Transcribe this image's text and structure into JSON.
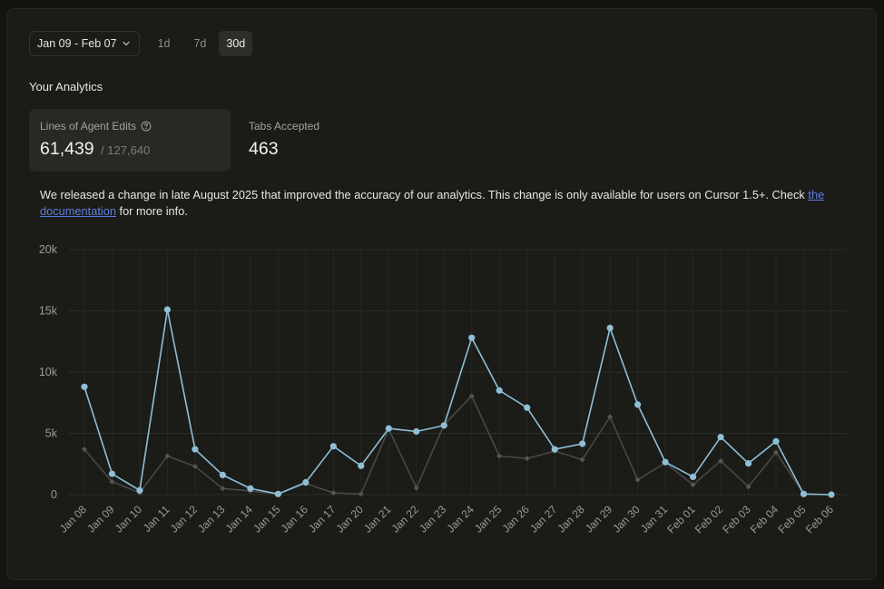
{
  "toolbar": {
    "date_range": "Jan 09 - Feb 07",
    "ranges": [
      "1d",
      "7d",
      "30d"
    ],
    "active_range": "30d"
  },
  "section_title": "Your Analytics",
  "cards": [
    {
      "label": "Lines of Agent Edits",
      "value": "61,439",
      "total": "/ 127,640",
      "icon": "help-circle-icon"
    },
    {
      "label": "Tabs Accepted",
      "value": "463"
    }
  ],
  "notice": {
    "text_before": "We released a change in late August 2025 that improved the accuracy of our analytics. This change is only available for users on Cursor 1.5+. Check ",
    "link_text": "the documentation",
    "text_after": " for more info."
  },
  "colors": {
    "accent": "#8fbfd6",
    "secondary": "#4a4a4a",
    "link": "#5b7fe0"
  },
  "chart_data": {
    "type": "line",
    "categories": [
      "Jan 08",
      "Jan 09",
      "Jan 10",
      "Jan 11",
      "Jan 12",
      "Jan 13",
      "Jan 14",
      "Jan 15",
      "Jan 16",
      "Jan 17",
      "Jan 20",
      "Jan 21",
      "Jan 22",
      "Jan 23",
      "Jan 24",
      "Jan 25",
      "Jan 26",
      "Jan 27",
      "Jan 28",
      "Jan 29",
      "Jan 30",
      "Jan 31",
      "Feb 01",
      "Feb 02",
      "Feb 03",
      "Feb 04",
      "Feb 05",
      "Feb 06"
    ],
    "series": [
      {
        "values": [
          8800,
          1700,
          350,
          15100,
          3700,
          1600,
          500,
          50,
          1000,
          3950,
          2350,
          5400,
          5150,
          5650,
          12800,
          8500,
          7100,
          3700,
          4150,
          13600,
          7350,
          2650,
          1450,
          4700,
          2550,
          4350,
          50,
          0
        ]
      },
      {
        "values": [
          3700,
          1050,
          150,
          3150,
          2300,
          500,
          300,
          50,
          900,
          150,
          50,
          5350,
          550,
          5700,
          8050,
          3150,
          2950,
          3550,
          2850,
          6350,
          1200,
          2600,
          800,
          2750,
          650,
          3450,
          50,
          0
        ]
      }
    ],
    "ylim": [
      0,
      20000
    ],
    "yticks": [
      0,
      5000,
      10000,
      15000,
      20000
    ],
    "ytick_labels": [
      "0",
      "5k",
      "10k",
      "15k",
      "20k"
    ],
    "grid": true
  }
}
